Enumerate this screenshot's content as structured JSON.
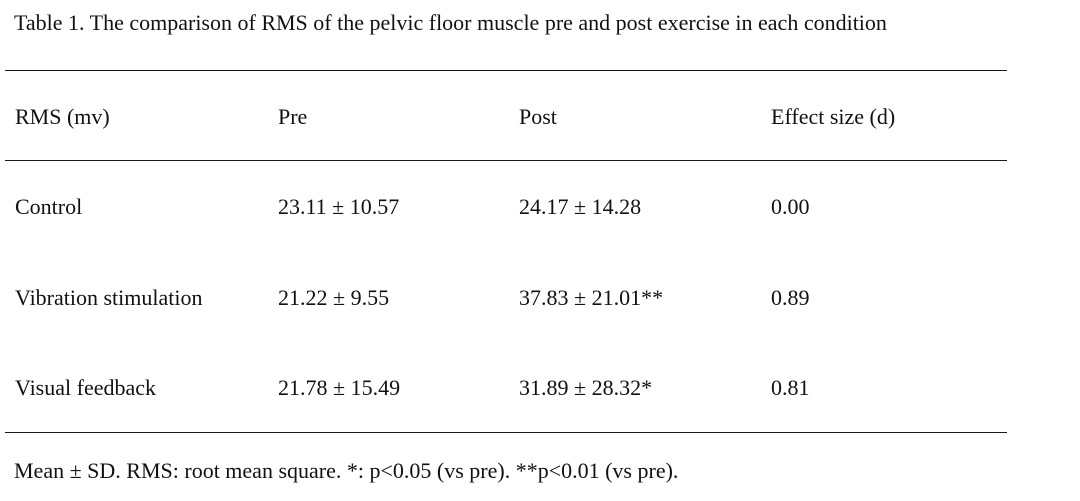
{
  "table": {
    "caption": "Table 1. The comparison of RMS of the pelvic floor muscle pre and post exercise in each condition",
    "headers": [
      "RMS (mv)",
      "Pre",
      "Post",
      "Effect size (d)"
    ],
    "rows": [
      [
        "Control",
        "23.11 ± 10.57",
        "24.17 ± 14.28",
        "0.00"
      ],
      [
        "Vibration stimulation",
        "21.22 ± 9.55",
        "37.83 ± 21.01**",
        "0.89"
      ],
      [
        "Visual feedback",
        "21.78 ± 15.49",
        "31.89 ± 28.32*",
        "0.81"
      ]
    ],
    "footnote": "Mean ± SD. RMS: root mean square. *: p<0.05 (vs pre). **p<0.01 (vs pre)."
  }
}
